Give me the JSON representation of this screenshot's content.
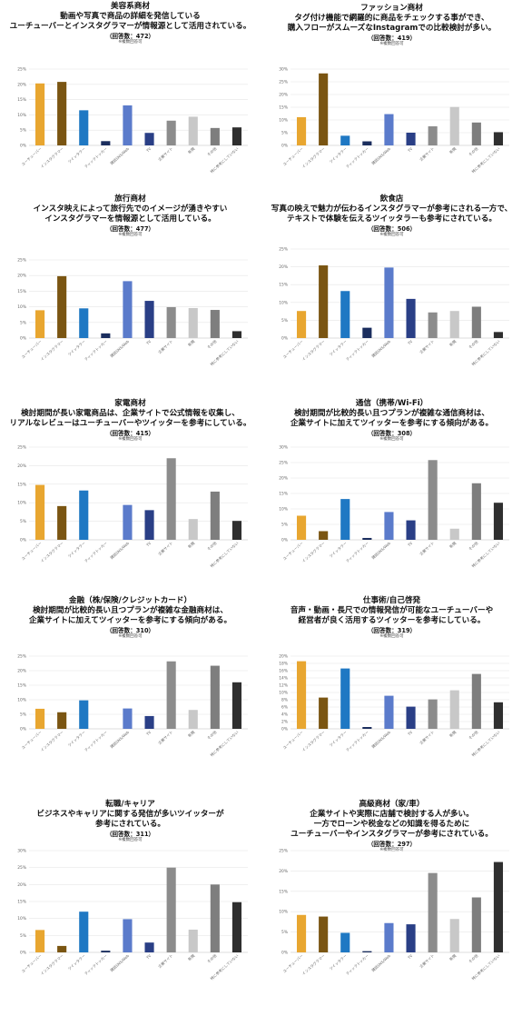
{
  "categories": [
    "ユーチューバー",
    "インスタグラマー",
    "ツイッタラー",
    "ティックトッカー",
    "雑誌SNS/Web",
    "TV",
    "企業サイト",
    "新聞",
    "その他",
    "特に参考にしていない"
  ],
  "colors": {
    "ユーチューバー": "#E8A630",
    "インスタグラマー": "#7A5512",
    "ツイッタラー": "#1F78C3",
    "ティックトッカー": "#1B2E5E",
    "雑誌SNS/Web": "#5B7BCB",
    "TV": "#2A3F86",
    "企業サイト": "#8C8C8C",
    "新聞": "#C8C8C8",
    "その他": "#7E7E7E",
    "特に参考にしていない": "#2F2F2F"
  },
  "chart_data": [
    {
      "type": "bar",
      "title": "美容系商材",
      "subtitle_lines": [
        "動画や写真で商品の詳細を発信している",
        "ユーチューバーとインスタグラマーが情報源として活用されている。"
      ],
      "count": "（回答数：472）",
      "note": "※複数回答可",
      "yticks": [
        "0%",
        "5%",
        "10%",
        "15%",
        "20%",
        "25%"
      ],
      "ylim": [
        0,
        25
      ],
      "categories": [
        "ユーチューバー",
        "インスタグラマー",
        "ツイッタラー",
        "ティックトッカー",
        "雑誌SNS/Web",
        "TV",
        "企業サイト",
        "新聞",
        "その他",
        "特に参考にしていない"
      ],
      "values": [
        20.3,
        20.8,
        11.5,
        1.4,
        13.1,
        4.1,
        8.1,
        9.4,
        5.7,
        5.9
      ]
    },
    {
      "type": "bar",
      "title": "ファッション商材",
      "subtitle_lines": [
        "タグ付け機能で網羅的に商品をチェックする事ができ、",
        "購入フローがスムーズなInstagramでの比較検討が多い。"
      ],
      "count": "（回答数：419）",
      "note": "※複数回答可",
      "yticks": [
        "0%",
        "5%",
        "10%",
        "15%",
        "20%",
        "25%",
        "30%"
      ],
      "ylim": [
        0,
        30
      ],
      "categories": [
        "ユーチューバー",
        "インスタグラマー",
        "ツイッタラー",
        "ティックトッカー",
        "雑誌SNS/Web",
        "TV",
        "企業サイト",
        "新聞",
        "その他",
        "特に参考にしていない"
      ],
      "values": [
        11.1,
        28.3,
        3.8,
        1.6,
        12.3,
        5.0,
        7.5,
        15.1,
        9.0,
        5.2
      ]
    },
    {
      "type": "bar",
      "title": "旅行商材",
      "subtitle_lines": [
        "インスタ映えによって旅行先でのイメージが湧きやすい",
        "インスタグラマーを情報源として活用している。"
      ],
      "count": "（回答数：477）",
      "note": "※複数回答可",
      "yticks": [
        "0%",
        "5%",
        "10%",
        "15%",
        "20%",
        "25%"
      ],
      "ylim": [
        0,
        25
      ],
      "categories": [
        "ユーチューバー",
        "インスタグラマー",
        "ツイッタラー",
        "ティックトッカー",
        "雑誌SNS/Web",
        "TV",
        "企業サイト",
        "新聞",
        "その他",
        "特に参考にしていない"
      ],
      "values": [
        8.9,
        19.8,
        9.5,
        1.5,
        18.2,
        11.9,
        9.9,
        9.6,
        9.0,
        2.2
      ]
    },
    {
      "type": "bar",
      "title": "飲食店",
      "subtitle_lines": [
        "写真の映えで魅力が伝わるインスタグラマーが参考にされる一方で、",
        "テキストで体験を伝えるツイッタラーも参考にされている。"
      ],
      "count": "（回答数：506）",
      "note": "※複数回答可",
      "yticks": [
        "0%",
        "5%",
        "10%",
        "15%",
        "20%",
        "25%"
      ],
      "ylim": [
        0,
        25
      ],
      "categories": [
        "ユーチューバー",
        "インスタグラマー",
        "ツイッタラー",
        "ティックトッカー",
        "雑誌SNS/Web",
        "TV",
        "企業サイト",
        "新聞",
        "その他",
        "特に参考にしていない"
      ],
      "values": [
        7.6,
        20.4,
        13.2,
        2.9,
        19.8,
        11.0,
        7.2,
        7.6,
        8.8,
        1.7
      ]
    },
    {
      "type": "bar",
      "title": "家電商材",
      "subtitle_lines": [
        "検討期間が長い家電商品は、企業サイトで公式情報を収集し、",
        "リアルなレビューはユーチューバーやツイッターを参考にしている。"
      ],
      "count": "（回答数：415）",
      "note": "※複数回答可",
      "yticks": [
        "0%",
        "5%",
        "10%",
        "15%",
        "20%",
        "25%"
      ],
      "ylim": [
        0,
        25
      ],
      "categories": [
        "ユーチューバー",
        "インスタグラマー",
        "ツイッタラー",
        "ティックトッカー",
        "雑誌SNS/Web",
        "TV",
        "企業サイト",
        "新聞",
        "その他",
        "特に参考にしていない"
      ],
      "values": [
        14.8,
        9.1,
        13.3,
        0,
        9.4,
        8.0,
        22.0,
        5.6,
        13.0,
        5.1
      ]
    },
    {
      "type": "bar",
      "title": "通信（携帯/Wi-Fi）",
      "subtitle_lines": [
        "検討期間が比較的長い且つプランが複雑な通信商材は、",
        "企業サイトに加えてツイッターを参考にする傾向がある。"
      ],
      "count": "（回答数：308）",
      "note": "※複数回答可",
      "yticks": [
        "0%",
        "5%",
        "10%",
        "15%",
        "20%",
        "25%",
        "30%"
      ],
      "ylim": [
        0,
        30
      ],
      "categories": [
        "ユーチューバー",
        "インスタグラマー",
        "ツイッタラー",
        "ティックトッカー",
        "雑誌SNS/Web",
        "TV",
        "企業サイト",
        "新聞",
        "その他",
        "特に参考にしていない"
      ],
      "values": [
        7.8,
        2.8,
        13.2,
        0.6,
        9.0,
        6.3,
        25.8,
        3.6,
        18.3,
        12.0
      ]
    },
    {
      "type": "bar",
      "title": "金融（株/保険/クレジットカード）",
      "subtitle_lines": [
        "検討期間が比較的長い且つプランが複雑な金融商材は、",
        "企業サイトに加えてツイッターを参考にする傾向がある。"
      ],
      "count": "（回答数：310）",
      "note": "※複数回答可",
      "yticks": [
        "0%",
        "5%",
        "10%",
        "15%",
        "20%",
        "25%"
      ],
      "ylim": [
        0,
        25
      ],
      "categories": [
        "ユーチューバー",
        "インスタグラマー",
        "ツイッタラー",
        "ティックトッカー",
        "雑誌SNS/Web",
        "TV",
        "企業サイト",
        "新聞",
        "その他",
        "特に参考にしていない"
      ],
      "values": [
        6.9,
        5.7,
        9.8,
        0,
        7.0,
        4.4,
        23.2,
        6.5,
        21.7,
        16.0
      ]
    },
    {
      "type": "bar",
      "title": "仕事術/自己啓発",
      "subtitle_lines": [
        "音声・動画・長尺での情報発信が可能なユーチューバーや",
        "経営者が良く活用するツイッターを参考にしている。"
      ],
      "count": "（回答数：319）",
      "note": "※複数回答可",
      "yticks": [
        "0%",
        "2%",
        "4%",
        "6%",
        "8%",
        "10%",
        "12%",
        "14%",
        "16%",
        "18%",
        "20%"
      ],
      "ylim": [
        0,
        20
      ],
      "categories": [
        "ユーチューバー",
        "インスタグラマー",
        "ツイッタラー",
        "ティックトッカー",
        "雑誌SNS/Web",
        "TV",
        "企業サイト",
        "新聞",
        "その他",
        "特に参考にしていない"
      ],
      "values": [
        18.6,
        8.6,
        16.6,
        0.5,
        9.1,
        6.1,
        8.1,
        10.6,
        15.1,
        7.3
      ]
    },
    {
      "type": "bar",
      "title": "転職/キャリア",
      "subtitle_lines": [
        "ビジネスやキャリアに関する発信が多いツイッターが",
        "参考にされている。"
      ],
      "count": "（回答数：311）",
      "note": "※複数回答可",
      "yticks": [
        "0%",
        "5%",
        "10%",
        "15%",
        "20%",
        "25%",
        "30%"
      ],
      "ylim": [
        0,
        30
      ],
      "categories": [
        "ユーチューバー",
        "インスタグラマー",
        "ツイッタラー",
        "ティックトッカー",
        "雑誌SNS/Web",
        "TV",
        "企業サイト",
        "新聞",
        "その他",
        "特に参考にしていない"
      ],
      "values": [
        6.6,
        1.9,
        12.0,
        0.5,
        9.8,
        2.9,
        25.0,
        6.7,
        20.0,
        14.8
      ]
    },
    {
      "type": "bar",
      "title": "高級商材（家/車）",
      "subtitle_lines": [
        "企業サイトや実際に店舗で検討する人が多い。",
        "一方でローンや税金などの知識を得るために",
        "ユーチューバーやインスタグラマーが参考にされている。"
      ],
      "count": "（回答数：297）",
      "note": "※複数回答可",
      "yticks": [
        "0%",
        "5%",
        "10%",
        "15%",
        "20%",
        "25%"
      ],
      "ylim": [
        0,
        25
      ],
      "categories": [
        "ユーチューバー",
        "インスタグラマー",
        "ツイッタラー",
        "ティックトッカー",
        "雑誌SNS/Web",
        "TV",
        "企業サイト",
        "新聞",
        "その他",
        "特に参考にしていない"
      ],
      "values": [
        9.2,
        8.8,
        4.8,
        0.3,
        7.2,
        6.9,
        19.5,
        8.2,
        13.5,
        22.2
      ]
    }
  ]
}
